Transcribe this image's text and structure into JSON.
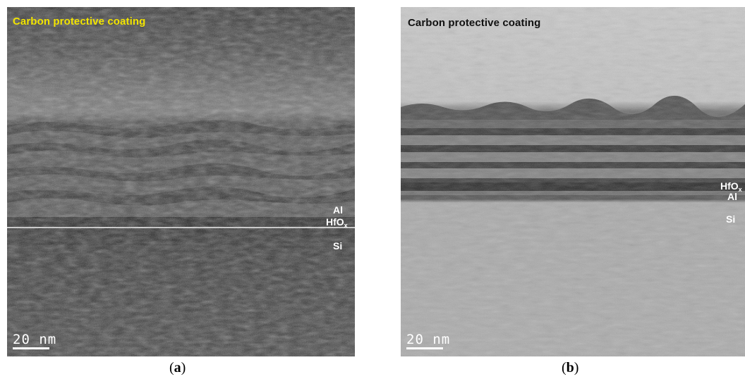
{
  "panels": [
    {
      "id": "a",
      "overlay_title": "Carbon protective coating",
      "overlay_title_color": "#f2e400",
      "labels": {
        "top": "Al",
        "middle_main": "HfO",
        "middle_sub": "x",
        "bottom": "Si"
      },
      "scale_bar": "20 nm",
      "caption_letter": "a"
    },
    {
      "id": "b",
      "overlay_title": "Carbon protective coating",
      "overlay_title_color": "#111111",
      "labels": {
        "top_main": "HfO",
        "top_sub": "x",
        "middle": "Al",
        "bottom": "Si"
      },
      "scale_bar": "20 nm",
      "caption_letter": "b"
    }
  ]
}
